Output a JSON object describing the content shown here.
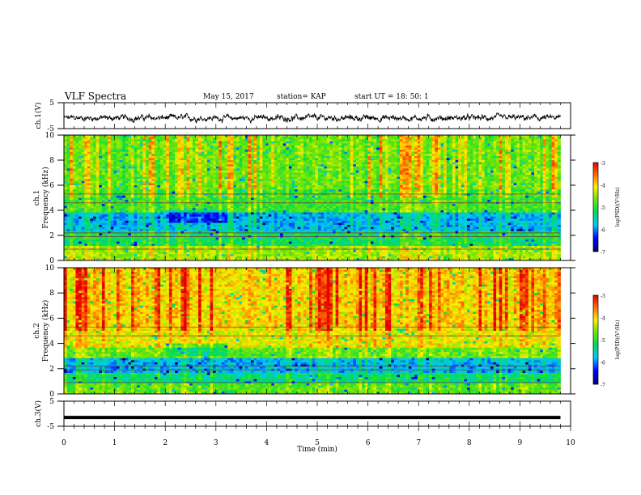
{
  "header": {
    "title": "VLF Spectra",
    "date": "May 15, 2017",
    "station": "station= KAP",
    "start": "start  UT  =   18: 50: 1"
  },
  "chart_data": [
    {
      "type": "line",
      "ylabel": "ch.1(V)",
      "ylim": [
        -5,
        5
      ],
      "yticks": [
        "5",
        "-5"
      ],
      "xlim": [
        0,
        10
      ],
      "trace": "noisy waveform near -1 V, about ±1.5 V amplitude, ends near 9.8 min"
    },
    {
      "type": "heatmap",
      "ylabel": "ch.1\nFrequency (kHz)",
      "ylim": [
        0,
        10
      ],
      "yticks": [
        "0",
        "2",
        "4",
        "6",
        "8",
        "10"
      ],
      "xlim": [
        0,
        10
      ],
      "colorbar": {
        "label": "log(PSD)(V²/Hz)",
        "range": [
          -7,
          -3
        ],
        "ticks": [
          "-3",
          "-4",
          "-5",
          "-6",
          "-7"
        ]
      }
    },
    {
      "type": "heatmap",
      "ylabel": "ch.2\nFrequency (kHz)",
      "ylim": [
        0,
        10
      ],
      "yticks": [
        "0",
        "2",
        "4",
        "6",
        "8",
        "10"
      ],
      "xlim": [
        0,
        10
      ],
      "colorbar": {
        "label": "log(PSD)(V²/Hz)",
        "range": [
          -7,
          -3
        ],
        "ticks": [
          "-3",
          "-4",
          "-5",
          "-6",
          "-7"
        ]
      }
    },
    {
      "type": "line",
      "ylabel": "ch.3(V)",
      "ylim": [
        -5,
        5
      ],
      "yticks": [
        "5",
        "-5"
      ],
      "xlim": [
        0,
        10
      ],
      "trace": "flat line at about -1.5 V, ends near 9.8 min"
    }
  ],
  "xaxis": {
    "label": "Time  (min)",
    "ticks": [
      "0",
      "1",
      "2",
      "3",
      "4",
      "5",
      "6",
      "7",
      "8",
      "9",
      "10"
    ]
  }
}
